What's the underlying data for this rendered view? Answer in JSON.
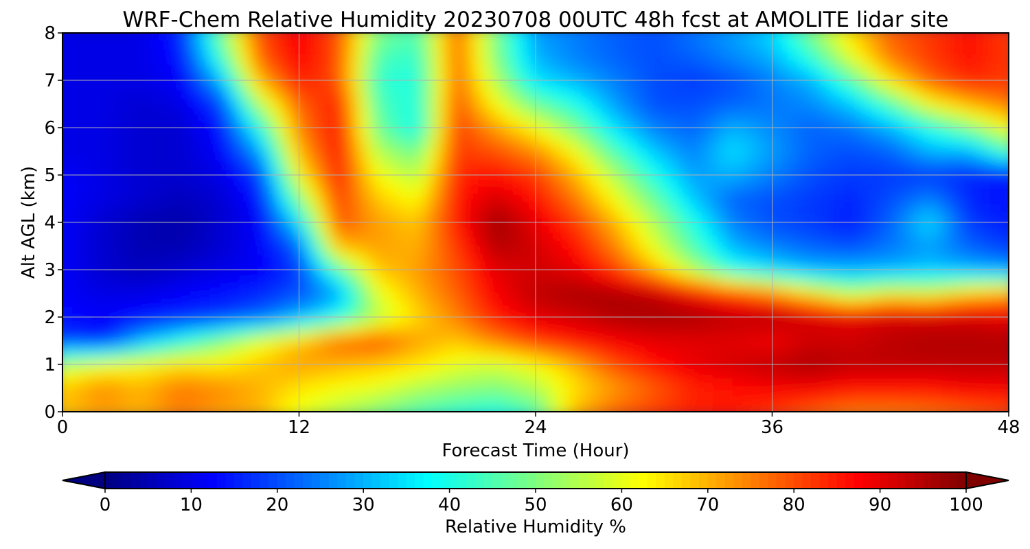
{
  "chart_data": {
    "type": "heatmap",
    "title": "WRF-Chem Relative Humidity 20230708 00UTC 48h fcst at AMOLITE lidar site",
    "xlabel": "Forecast Time (Hour)",
    "ylabel": "Alt AGL (km)",
    "xlim": [
      0,
      48
    ],
    "ylim": [
      0,
      8
    ],
    "xticks": [
      "0",
      "12",
      "24",
      "36",
      "48"
    ],
    "yticks": [
      "0",
      "1",
      "2",
      "3",
      "4",
      "5",
      "6",
      "7",
      "8"
    ],
    "grid": true,
    "colorbar": {
      "label": "Relative Humidity %",
      "range": [
        0,
        100
      ],
      "ticks": [
        "0",
        "10",
        "20",
        "30",
        "40",
        "50",
        "60",
        "70",
        "80",
        "90",
        "100"
      ],
      "colormap": "jet",
      "extend": "both"
    },
    "x": [
      0,
      2,
      4,
      6,
      8,
      10,
      12,
      14,
      16,
      18,
      20,
      22,
      24,
      26,
      28,
      30,
      32,
      34,
      36,
      38,
      40,
      42,
      44,
      46,
      48
    ],
    "y": [
      0,
      0.5,
      1,
      1.5,
      2,
      2.5,
      3,
      3.5,
      4,
      4.5,
      5,
      5.5,
      6,
      6.5,
      7,
      7.5,
      8
    ],
    "z": [
      [
        68,
        72,
        70,
        75,
        72,
        70,
        60,
        55,
        50,
        45,
        42,
        40,
        45,
        70,
        78,
        82,
        85,
        85,
        82,
        78,
        75,
        75,
        76,
        78,
        80
      ],
      [
        68,
        74,
        70,
        76,
        74,
        70,
        65,
        62,
        60,
        55,
        52,
        50,
        55,
        65,
        72,
        78,
        84,
        86,
        88,
        88,
        86,
        86,
        86,
        88,
        88
      ],
      [
        55,
        60,
        62,
        65,
        64,
        68,
        72,
        70,
        68,
        65,
        60,
        58,
        62,
        70,
        80,
        86,
        90,
        92,
        94,
        96,
        94,
        94,
        94,
        94,
        94
      ],
      [
        18,
        15,
        30,
        40,
        50,
        60,
        68,
        78,
        80,
        72,
        68,
        75,
        82,
        86,
        88,
        90,
        90,
        90,
        88,
        92,
        92,
        94,
        95,
        95,
        95
      ],
      [
        14,
        12,
        14,
        16,
        18,
        22,
        30,
        40,
        55,
        66,
        75,
        85,
        90,
        92,
        95,
        96,
        96,
        94,
        95,
        92,
        90,
        92,
        92,
        92,
        90
      ],
      [
        12,
        10,
        10,
        12,
        14,
        16,
        20,
        28,
        60,
        70,
        78,
        88,
        94,
        96,
        96,
        94,
        88,
        82,
        75,
        65,
        55,
        62,
        60,
        68,
        72
      ],
      [
        12,
        8,
        6,
        8,
        10,
        12,
        18,
        45,
        68,
        72,
        80,
        90,
        92,
        90,
        82,
        70,
        55,
        40,
        35,
        30,
        30,
        30,
        32,
        30,
        28
      ],
      [
        12,
        8,
        5,
        5,
        8,
        12,
        22,
        70,
        72,
        70,
        82,
        95,
        92,
        86,
        75,
        60,
        45,
        30,
        25,
        22,
        20,
        24,
        28,
        22,
        18
      ],
      [
        12,
        8,
        5,
        4,
        8,
        12,
        35,
        80,
        72,
        68,
        85,
        97,
        90,
        82,
        70,
        55,
        40,
        25,
        20,
        18,
        15,
        22,
        35,
        18,
        15
      ],
      [
        12,
        10,
        8,
        6,
        8,
        14,
        50,
        82,
        68,
        62,
        85,
        92,
        86,
        76,
        62,
        48,
        32,
        22,
        20,
        18,
        16,
        20,
        25,
        16,
        14
      ],
      [
        12,
        10,
        8,
        8,
        10,
        18,
        62,
        85,
        62,
        55,
        84,
        86,
        82,
        70,
        55,
        40,
        28,
        30,
        25,
        20,
        18,
        18,
        18,
        16,
        14
      ],
      [
        10,
        10,
        8,
        8,
        12,
        28,
        70,
        86,
        55,
        48,
        82,
        80,
        74,
        62,
        45,
        32,
        25,
        35,
        28,
        22,
        20,
        22,
        30,
        30,
        45
      ],
      [
        10,
        10,
        8,
        8,
        14,
        40,
        75,
        86,
        48,
        38,
        82,
        72,
        62,
        50,
        35,
        25,
        22,
        30,
        26,
        22,
        24,
        30,
        40,
        50,
        62
      ],
      [
        10,
        10,
        8,
        10,
        18,
        55,
        78,
        85,
        45,
        40,
        80,
        62,
        48,
        40,
        28,
        20,
        20,
        22,
        24,
        26,
        32,
        45,
        62,
        70,
        76
      ],
      [
        10,
        10,
        10,
        12,
        30,
        70,
        85,
        80,
        42,
        40,
        78,
        55,
        35,
        30,
        25,
        20,
        18,
        20,
        25,
        30,
        45,
        65,
        78,
        84,
        82
      ],
      [
        10,
        10,
        10,
        14,
        42,
        78,
        88,
        80,
        45,
        42,
        78,
        50,
        30,
        25,
        22,
        20,
        22,
        26,
        30,
        42,
        60,
        76,
        82,
        86,
        82
      ],
      [
        10,
        10,
        10,
        16,
        48,
        80,
        88,
        80,
        50,
        45,
        78,
        50,
        28,
        25,
        22,
        20,
        24,
        28,
        34,
        50,
        66,
        78,
        82,
        86,
        82
      ]
    ]
  }
}
